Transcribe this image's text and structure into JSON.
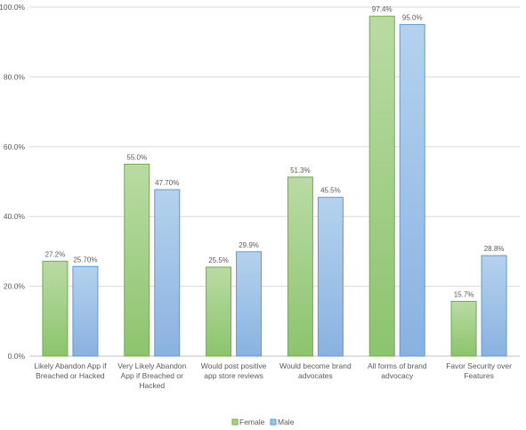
{
  "chart_data": {
    "type": "bar",
    "categories": [
      [
        "Likely Abandon App if",
        "Breached or Hacked"
      ],
      [
        "Very Likely Abandon",
        "App if Breached or",
        "Hacked"
      ],
      [
        "Would post positive",
        "app store reviews"
      ],
      [
        "Would become brand",
        "advocates"
      ],
      [
        "All forms of brand",
        "advocacy"
      ],
      [
        "Favor Security over",
        "Features"
      ]
    ],
    "series": [
      {
        "name": "Female",
        "values": [
          27.2,
          55.0,
          25.5,
          51.3,
          97.4,
          15.7
        ],
        "labels": [
          "27.2%",
          "55.0%",
          "25.5%",
          "51.3%",
          "97.4%",
          "15.7%"
        ],
        "fill": "#a9d18e",
        "stroke": "#70ad47"
      },
      {
        "name": "Male",
        "values": [
          25.7,
          47.7,
          29.9,
          45.5,
          95.0,
          28.8
        ],
        "labels": [
          "25.70%",
          "47.70%",
          "29.9%",
          "45.5%",
          "95.0%",
          "28.8%"
        ],
        "fill": "#9dc3e6",
        "stroke": "#5b9bd5"
      }
    ],
    "yticks": [
      "0.0%",
      "20.0%",
      "40.0%",
      "60.0%",
      "80.0%",
      "100.0%"
    ],
    "ytick_values": [
      0,
      20,
      40,
      60,
      80,
      100
    ],
    "ylim": [
      0,
      100
    ],
    "grid": true,
    "legend_position": "bottom"
  }
}
